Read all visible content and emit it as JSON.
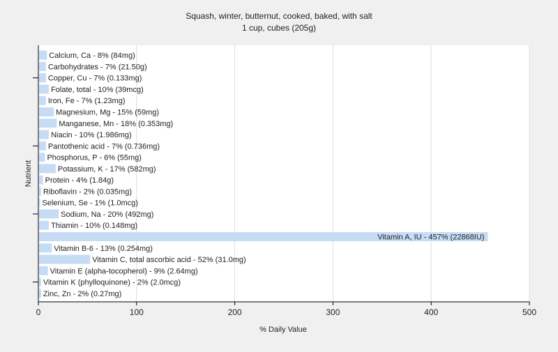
{
  "chart_data": {
    "type": "bar",
    "orientation": "horizontal",
    "title": "Squash, winter, butternut, cooked, baked, with salt",
    "subtitle": "1 cup, cubes (205g)",
    "xlabel": "% Daily Value",
    "ylabel": "Nutrient",
    "xlim": [
      0,
      500
    ],
    "xticks": [
      0,
      100,
      200,
      300,
      400,
      500
    ],
    "grid": true,
    "bar_color": "#c6dcf5",
    "categories": [
      "Calcium, Ca",
      "Carbohydrates",
      "Copper, Cu",
      "Folate, total",
      "Iron, Fe",
      "Magnesium, Mg",
      "Manganese, Mn",
      "Niacin",
      "Pantothenic acid",
      "Phosphorus, P",
      "Potassium, K",
      "Protein",
      "Riboflavin",
      "Selenium, Se",
      "Sodium, Na",
      "Thiamin",
      "Vitamin A, IU",
      "Vitamin B-6",
      "Vitamin C, total ascorbic acid",
      "Vitamin E (alpha-tocopherol)",
      "Vitamin K (phylloquinone)",
      "Zinc, Zn"
    ],
    "values": [
      8,
      7,
      7,
      10,
      7,
      15,
      18,
      10,
      7,
      6,
      17,
      4,
      2,
      1,
      20,
      10,
      457,
      13,
      52,
      9,
      2,
      2
    ],
    "labels": [
      "Calcium, Ca - 8% (84mg)",
      "Carbohydrates - 7% (21.50g)",
      "Copper, Cu - 7% (0.133mg)",
      "Folate, total - 10% (39mcg)",
      "Iron, Fe - 7% (1.23mg)",
      "Magnesium, Mg - 15% (59mg)",
      "Manganese, Mn - 18% (0.353mg)",
      "Niacin - 10% (1.986mg)",
      "Pantothenic acid - 7% (0.736mg)",
      "Phosphorus, P - 6% (55mg)",
      "Potassium, K - 17% (582mg)",
      "Protein - 4% (1.84g)",
      "Riboflavin - 2% (0.035mg)",
      "Selenium, Se - 1% (1.0mcg)",
      "Sodium, Na - 20% (492mg)",
      "Thiamin - 10% (0.148mg)",
      "Vitamin A, IU - 457% (22868IU)",
      "Vitamin B-6 - 13% (0.254mg)",
      "Vitamin C, total ascorbic acid - 52% (31.0mg)",
      "Vitamin E (alpha-tocopherol) - 9% (2.64mg)",
      "Vitamin K (phylloquinone) - 2% (2.0mcg)",
      "Zinc, Zn - 2% (0.27mg)"
    ]
  }
}
